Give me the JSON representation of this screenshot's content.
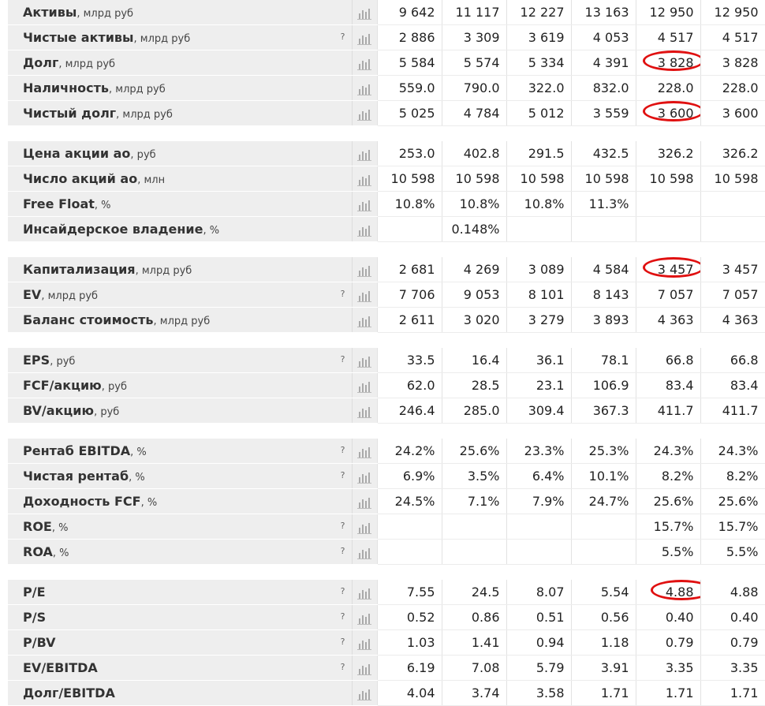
{
  "rows": [
    {
      "type": "data",
      "label": "Активы",
      "unit": ", млрд руб",
      "q": false,
      "values": [
        "9 642",
        "11 117",
        "12 227",
        "13 163",
        "12 950",
        "12 950"
      ]
    },
    {
      "type": "data",
      "label": "Чистые активы",
      "unit": ", млрд руб",
      "q": true,
      "values": [
        "2 886",
        "3 309",
        "3 619",
        "4 053",
        "4 517",
        "4 517"
      ]
    },
    {
      "type": "data",
      "label": "Долг",
      "unit": ", млрд руб",
      "q": false,
      "values": [
        "5 584",
        "5 574",
        "5 334",
        "4 391",
        "3 828",
        "3 828"
      ],
      "circled": 4
    },
    {
      "type": "data",
      "label": "Наличность",
      "unit": ", млрд руб",
      "q": false,
      "values": [
        "559.0",
        "790.0",
        "322.0",
        "832.0",
        "228.0",
        "228.0"
      ]
    },
    {
      "type": "data",
      "label": "Чистый долг",
      "unit": ", млрд руб",
      "q": false,
      "values": [
        "5 025",
        "4 784",
        "5 012",
        "3 559",
        "3 600",
        "3 600"
      ],
      "circled": 4
    },
    {
      "type": "spacer"
    },
    {
      "type": "data",
      "label": "Цена акции ао",
      "unit": ", руб",
      "q": false,
      "values": [
        "253.0",
        "402.8",
        "291.5",
        "432.5",
        "326.2",
        "326.2"
      ]
    },
    {
      "type": "data",
      "label": "Число акций ао",
      "unit": ", млн",
      "q": false,
      "values": [
        "10 598",
        "10 598",
        "10 598",
        "10 598",
        "10 598",
        "10 598"
      ]
    },
    {
      "type": "data",
      "label": "Free Float",
      "unit": ", %",
      "q": false,
      "values": [
        "10.8%",
        "10.8%",
        "10.8%",
        "11.3%",
        "",
        ""
      ]
    },
    {
      "type": "data",
      "label": "Инсайдерское владение",
      "unit": ", %",
      "q": false,
      "values": [
        "",
        "0.148%",
        "",
        "",
        "",
        ""
      ]
    },
    {
      "type": "spacer"
    },
    {
      "type": "data",
      "label": "Капитализация",
      "unit": ", млрд руб",
      "q": false,
      "values": [
        "2 681",
        "4 269",
        "3 089",
        "4 584",
        "3 457",
        "3 457"
      ],
      "circled": 4
    },
    {
      "type": "data",
      "label": "EV",
      "unit": ", млрд руб",
      "q": true,
      "values": [
        "7 706",
        "9 053",
        "8 101",
        "8 143",
        "7 057",
        "7 057"
      ]
    },
    {
      "type": "data",
      "label": "Баланс стоимость",
      "unit": ", млрд руб",
      "q": false,
      "values": [
        "2 611",
        "3 020",
        "3 279",
        "3 893",
        "4 363",
        "4 363"
      ]
    },
    {
      "type": "spacer"
    },
    {
      "type": "data",
      "label": "EPS",
      "unit": ", руб",
      "q": true,
      "values": [
        "33.5",
        "16.4",
        "36.1",
        "78.1",
        "66.8",
        "66.8"
      ]
    },
    {
      "type": "data",
      "label": "FCF/акцию",
      "unit": ", руб",
      "q": false,
      "values": [
        "62.0",
        "28.5",
        "23.1",
        "106.9",
        "83.4",
        "83.4"
      ]
    },
    {
      "type": "data",
      "label": "BV/акцию",
      "unit": ", руб",
      "q": false,
      "values": [
        "246.4",
        "285.0",
        "309.4",
        "367.3",
        "411.7",
        "411.7"
      ]
    },
    {
      "type": "spacer"
    },
    {
      "type": "data",
      "label": "Рентаб EBITDA",
      "unit": ", %",
      "q": true,
      "values": [
        "24.2%",
        "25.6%",
        "23.3%",
        "25.3%",
        "24.3%",
        "24.3%"
      ]
    },
    {
      "type": "data",
      "label": "Чистая рентаб",
      "unit": ", %",
      "q": true,
      "values": [
        "6.9%",
        "3.5%",
        "6.4%",
        "10.1%",
        "8.2%",
        "8.2%"
      ]
    },
    {
      "type": "data",
      "label": "Доходность FCF",
      "unit": ", %",
      "q": false,
      "values": [
        "24.5%",
        "7.1%",
        "7.9%",
        "24.7%",
        "25.6%",
        "25.6%"
      ]
    },
    {
      "type": "data",
      "label": "ROE",
      "unit": ", %",
      "q": true,
      "values": [
        "",
        "",
        "",
        "",
        "15.7%",
        "15.7%"
      ]
    },
    {
      "type": "data",
      "label": "ROA",
      "unit": ", %",
      "q": true,
      "values": [
        "",
        "",
        "",
        "",
        "5.5%",
        "5.5%"
      ]
    },
    {
      "type": "spacer"
    },
    {
      "type": "data",
      "label": "P/E",
      "unit": "",
      "q": true,
      "values": [
        "7.55",
        "24.5",
        "8.07",
        "5.54",
        "4.88",
        "4.88"
      ],
      "circled": 4
    },
    {
      "type": "data",
      "label": "P/S",
      "unit": "",
      "q": true,
      "values": [
        "0.52",
        "0.86",
        "0.51",
        "0.56",
        "0.40",
        "0.40"
      ]
    },
    {
      "type": "data",
      "label": "P/BV",
      "unit": "",
      "q": true,
      "values": [
        "1.03",
        "1.41",
        "0.94",
        "1.18",
        "0.79",
        "0.79"
      ]
    },
    {
      "type": "data",
      "label": "EV/EBITDA",
      "unit": "",
      "q": true,
      "values": [
        "6.19",
        "7.08",
        "5.79",
        "3.91",
        "3.35",
        "3.35"
      ]
    },
    {
      "type": "data",
      "label": "Долг/EBITDA",
      "unit": "",
      "q": false,
      "values": [
        "4.04",
        "3.74",
        "3.58",
        "1.71",
        "1.71",
        "1.71"
      ]
    }
  ],
  "help_glyph": "?",
  "icon": "bar-chart-icon",
  "highlight_color": "#e01010"
}
